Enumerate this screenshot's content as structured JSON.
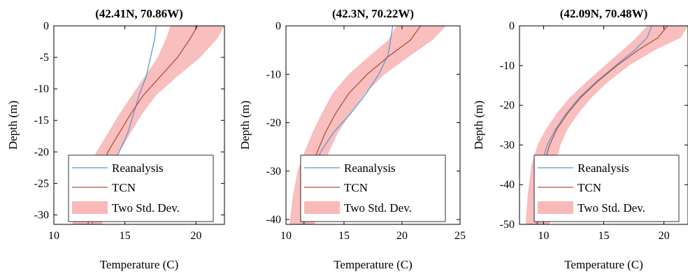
{
  "colors": {
    "reanalysis": "#5b9bd5",
    "tcn": "#b5523b",
    "band": "#f7a8a8"
  },
  "chart_data": [
    {
      "type": "line",
      "title": "(42.41N, 70.86W)",
      "xlabel": "Temperature (C)",
      "ylabel": "Depth (m)",
      "xlim": [
        10,
        22
      ],
      "ylim": [
        -31.5,
        0
      ],
      "xticks": [
        10,
        15,
        20
      ],
      "yticks": [
        0,
        -5,
        -10,
        -15,
        -20,
        -25,
        -30
      ],
      "legend": {
        "placement": "bottom-left",
        "entries": [
          "Reanalysis",
          "TCN",
          "Two Std. Dev."
        ]
      },
      "series": [
        {
          "name": "Reanalysis",
          "x": [
            17.2,
            17.1,
            16.8,
            16.5,
            16.0,
            15.6,
            15.2,
            14.6,
            13.9,
            13.2,
            12.8,
            12.7
          ],
          "y": [
            0,
            -2,
            -5,
            -8,
            -11,
            -14,
            -17,
            -20,
            -23,
            -26,
            -29,
            -31.5
          ]
        },
        {
          "name": "TCN",
          "x": [
            20.1,
            19.6,
            18.7,
            17.5,
            16.3,
            15.4,
            14.6,
            13.8,
            13.3,
            12.9,
            12.6,
            12.4
          ],
          "y": [
            0,
            -2,
            -5,
            -8,
            -11,
            -14,
            -17,
            -20,
            -23,
            -26,
            -29,
            -31.5
          ]
        },
        {
          "name": "Two Std. Dev.",
          "x_lower": [
            18.2,
            17.9,
            17.3,
            16.4,
            15.5,
            14.6,
            13.8,
            13.0,
            12.3,
            11.8,
            11.5,
            11.3
          ],
          "x_upper": [
            22.0,
            21.5,
            20.3,
            18.7,
            17.2,
            16.2,
            15.4,
            14.6,
            14.1,
            13.7,
            13.5,
            13.4
          ],
          "y": [
            0,
            -2,
            -5,
            -8,
            -11,
            -14,
            -17,
            -20,
            -23,
            -26,
            -29,
            -31.5
          ]
        }
      ]
    },
    {
      "type": "line",
      "title": "(42.3N, 70.22W)",
      "xlabel": "Temperature (C)",
      "ylabel": "Depth (m)",
      "xlim": [
        10,
        25
      ],
      "ylim": [
        -41,
        0
      ],
      "xticks": [
        10,
        15,
        20,
        25
      ],
      "yticks": [
        0,
        -10,
        -20,
        -30,
        -40
      ],
      "legend": {
        "placement": "bottom-left",
        "entries": [
          "Reanalysis",
          "TCN",
          "Two Std. Dev."
        ]
      },
      "series": [
        {
          "name": "Reanalysis",
          "x": [
            19.2,
            19.0,
            18.8,
            18.0,
            16.9,
            15.6,
            14.1,
            13.0,
            12.2,
            11.8,
            11.6
          ],
          "y": [
            0,
            -3,
            -6,
            -10,
            -14,
            -18,
            -22,
            -26,
            -30,
            -35,
            -41
          ]
        },
        {
          "name": "TCN",
          "x": [
            21.6,
            20.7,
            19.0,
            17.0,
            15.4,
            14.3,
            13.4,
            12.7,
            12.1,
            11.7,
            11.5
          ],
          "y": [
            0,
            -3,
            -6,
            -10,
            -14,
            -18,
            -22,
            -26,
            -30,
            -35,
            -41
          ]
        },
        {
          "name": "Two Std. Dev.",
          "x_lower": [
            19.5,
            18.8,
            17.3,
            15.4,
            14.0,
            13.1,
            12.3,
            11.6,
            11.0,
            10.6,
            10.3
          ],
          "x_upper": [
            23.8,
            22.6,
            20.8,
            18.5,
            16.8,
            15.6,
            14.5,
            13.7,
            13.1,
            12.7,
            12.5
          ],
          "y": [
            0,
            -3,
            -6,
            -10,
            -14,
            -18,
            -22,
            -26,
            -30,
            -35,
            -41
          ]
        }
      ]
    },
    {
      "type": "line",
      "title": "(42.09N, 70.48W)",
      "xlabel": "Temperature (C)",
      "ylabel": "Depth (m)",
      "xlim": [
        8,
        22
      ],
      "ylim": [
        -50,
        0
      ],
      "xticks": [
        10,
        15,
        20
      ],
      "yticks": [
        0,
        -10,
        -20,
        -30,
        -40,
        -50
      ],
      "legend": {
        "placement": "bottom-left",
        "entries": [
          "Reanalysis",
          "TCN",
          "Two Std. Dev."
        ]
      },
      "series": [
        {
          "name": "Reanalysis",
          "x": [
            19.0,
            18.6,
            17.6,
            16.0,
            14.4,
            13.0,
            11.9,
            11.0,
            10.3,
            9.8,
            9.5,
            9.4
          ],
          "y": [
            0,
            -3,
            -6,
            -10,
            -14,
            -18,
            -22,
            -26,
            -30,
            -35,
            -42,
            -50
          ]
        },
        {
          "name": "TCN",
          "x": [
            20.3,
            19.5,
            17.9,
            16.1,
            14.5,
            13.1,
            12.0,
            11.1,
            10.5,
            10.0,
            9.7,
            9.5
          ],
          "y": [
            0,
            -3,
            -6,
            -10,
            -14,
            -18,
            -22,
            -26,
            -30,
            -35,
            -42,
            -50
          ]
        },
        {
          "name": "Two Std. Dev.",
          "x_lower": [
            18.6,
            17.7,
            16.6,
            15.1,
            13.6,
            12.2,
            11.1,
            10.2,
            9.5,
            9.0,
            8.7,
            8.5
          ],
          "x_upper": [
            22.0,
            21.4,
            19.3,
            17.1,
            15.4,
            14.0,
            12.9,
            12.0,
            11.4,
            11.0,
            10.7,
            10.5
          ],
          "y": [
            0,
            -3,
            -6,
            -10,
            -14,
            -18,
            -22,
            -26,
            -30,
            -35,
            -42,
            -50
          ]
        }
      ]
    }
  ]
}
